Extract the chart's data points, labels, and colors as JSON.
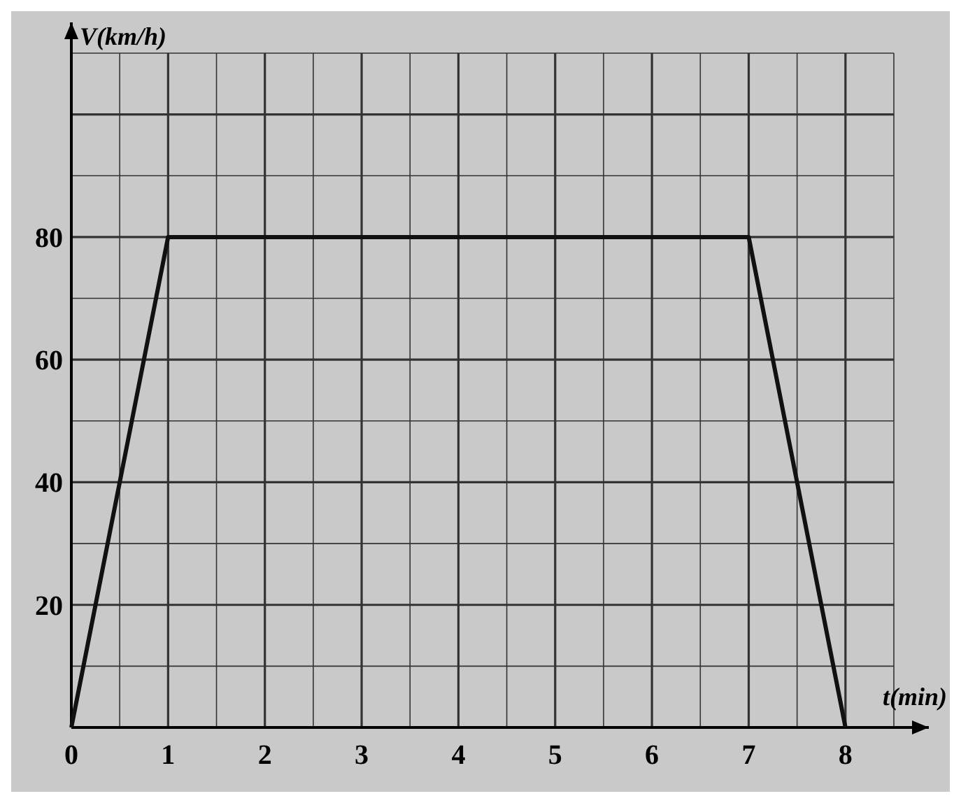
{
  "chart_data": {
    "type": "line",
    "xlabel": "t(min)",
    "ylabel": "V(km/h)",
    "x": [
      0,
      1,
      7,
      8
    ],
    "series": [
      {
        "color": "#111111",
        "values": [
          0,
          80,
          80,
          0
        ]
      }
    ],
    "xlim": [
      0,
      8.5
    ],
    "ylim": [
      0,
      110
    ],
    "xticks": [
      0,
      {
        "value": 0.5,
        "label": null
      },
      1,
      {
        "value": 1.5,
        "label": null
      },
      2,
      {
        "value": 2.5,
        "label": null
      },
      3,
      {
        "value": 3.5,
        "label": null
      },
      4,
      {
        "value": 4.5,
        "label": null
      },
      5,
      {
        "value": 5.5,
        "label": null
      },
      6,
      {
        "value": 6.5,
        "label": null
      },
      7,
      {
        "value": 7.5,
        "label": null
      },
      8,
      {
        "value": 8.5,
        "label": null
      }
    ],
    "yticks": [
      {
        "value": 10,
        "label": null
      },
      20,
      {
        "value": 30,
        "label": null
      },
      40,
      {
        "value": 50,
        "label": null
      },
      60,
      {
        "value": 70,
        "label": null
      },
      80,
      {
        "value": 90,
        "label": null
      },
      {
        "value": 100,
        "label": null
      },
      {
        "value": 110,
        "label": null
      }
    ],
    "grid": true,
    "marker": "none",
    "line_style": "solid"
  }
}
